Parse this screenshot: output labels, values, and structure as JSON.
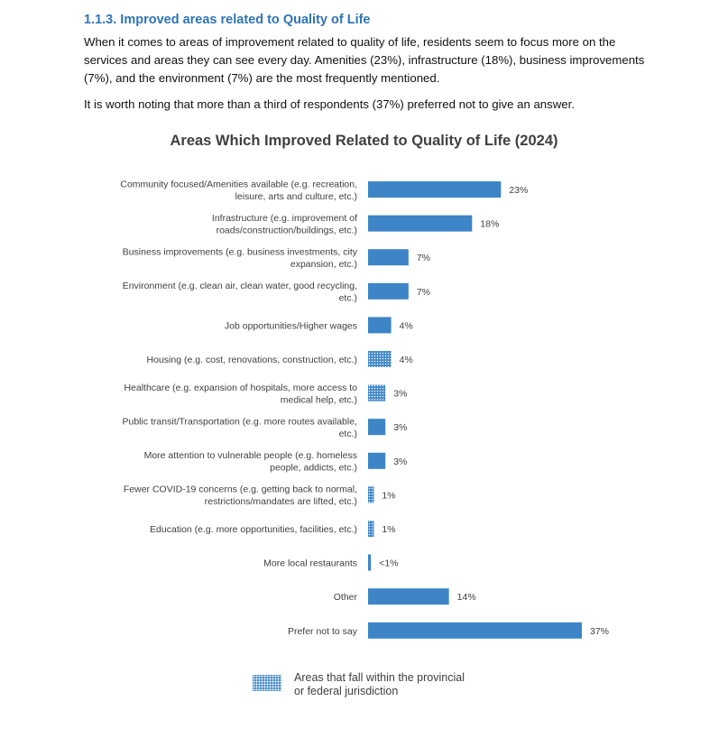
{
  "section": {
    "heading": "1.1.3. Improved areas related to Quality of Life",
    "paragraph1": "When it comes to areas of improvement related to quality of life, residents seem to focus more on the services and areas they can see every day. Amenities (23%), infrastructure (18%), business improvements (7%), and the environment (7%) are the most frequently mentioned.",
    "paragraph2": "It is worth noting that more than a third of respondents (37%) preferred not to give an answer."
  },
  "chart_data": {
    "type": "bar",
    "orientation": "horizontal",
    "title": "Areas Which Improved Related to Quality of Life (2024)",
    "bar_color": "#3d85c6",
    "categories": [
      "Community focused/Amenities available (e.g. recreation, leisure, arts and culture, etc.)",
      "Infrastructure (e.g. improvement of roads/construction/buildings, etc.)",
      "Business improvements (e.g. business investments, city expansion, etc.)",
      "Environment (e.g. clean air, clean water, good recycling, etc.)",
      "Job opportunities/Higher wages",
      "Housing (e.g. cost, renovations, construction, etc.)",
      "Healthcare (e.g. expansion of hospitals, more access to medical help, etc.)",
      "Public transit/Transportation (e.g. more routes available, etc.)",
      "More attention to vulnerable people (e.g. homeless people, addicts, etc.)",
      "Fewer COVID-19 concerns (e.g. getting back to normal, restrictions/mandates are lifted, etc.)",
      "Education (e.g. more opportunities, facilities, etc.)",
      "More local restaurants",
      "Other",
      "Prefer not to say"
    ],
    "category_lines": [
      [
        "Community focused/Amenities available (e.g. recreation,",
        "leisure, arts and culture, etc.)"
      ],
      [
        "Infrastructure (e.g. improvement of",
        "roads/construction/buildings, etc.)"
      ],
      [
        "Business improvements (e.g. business investments, city",
        "expansion, etc.)"
      ],
      [
        "Environment (e.g. clean air, clean water, good recycling,",
        "etc.)"
      ],
      [
        "Job opportunities/Higher wages"
      ],
      [
        "Housing (e.g. cost, renovations, construction, etc.)"
      ],
      [
        "Healthcare (e.g. expansion of hospitals, more access to",
        "medical help, etc.)"
      ],
      [
        "Public transit/Transportation (e.g. more routes available,",
        "etc.)"
      ],
      [
        "More attention to vulnerable people (e.g. homeless",
        "people, addicts, etc.)"
      ],
      [
        "Fewer COVID-19 concerns (e.g. getting back to normal,",
        "restrictions/mandates are lifted, etc.)"
      ],
      [
        "Education (e.g. more opportunities, facilities, etc.)"
      ],
      [
        "More local restaurants"
      ],
      [
        "Other"
      ],
      [
        "Prefer not to say"
      ]
    ],
    "values": [
      23,
      18,
      7,
      7,
      4,
      4,
      3,
      3,
      3,
      1,
      1,
      0.5,
      14,
      37
    ],
    "value_labels": [
      "23%",
      "18%",
      "7%",
      "7%",
      "4%",
      "4%",
      "3%",
      "3%",
      "3%",
      "1%",
      "1%",
      "<1%",
      "14%",
      "37%"
    ],
    "patterned": [
      false,
      false,
      false,
      false,
      false,
      true,
      true,
      false,
      false,
      true,
      true,
      false,
      false,
      false
    ],
    "legend": {
      "label": "Areas that fall within the provincial or federal jurisdiction",
      "label_lines": [
        "Areas that fall within the provincial",
        "or federal jurisdiction"
      ]
    }
  }
}
